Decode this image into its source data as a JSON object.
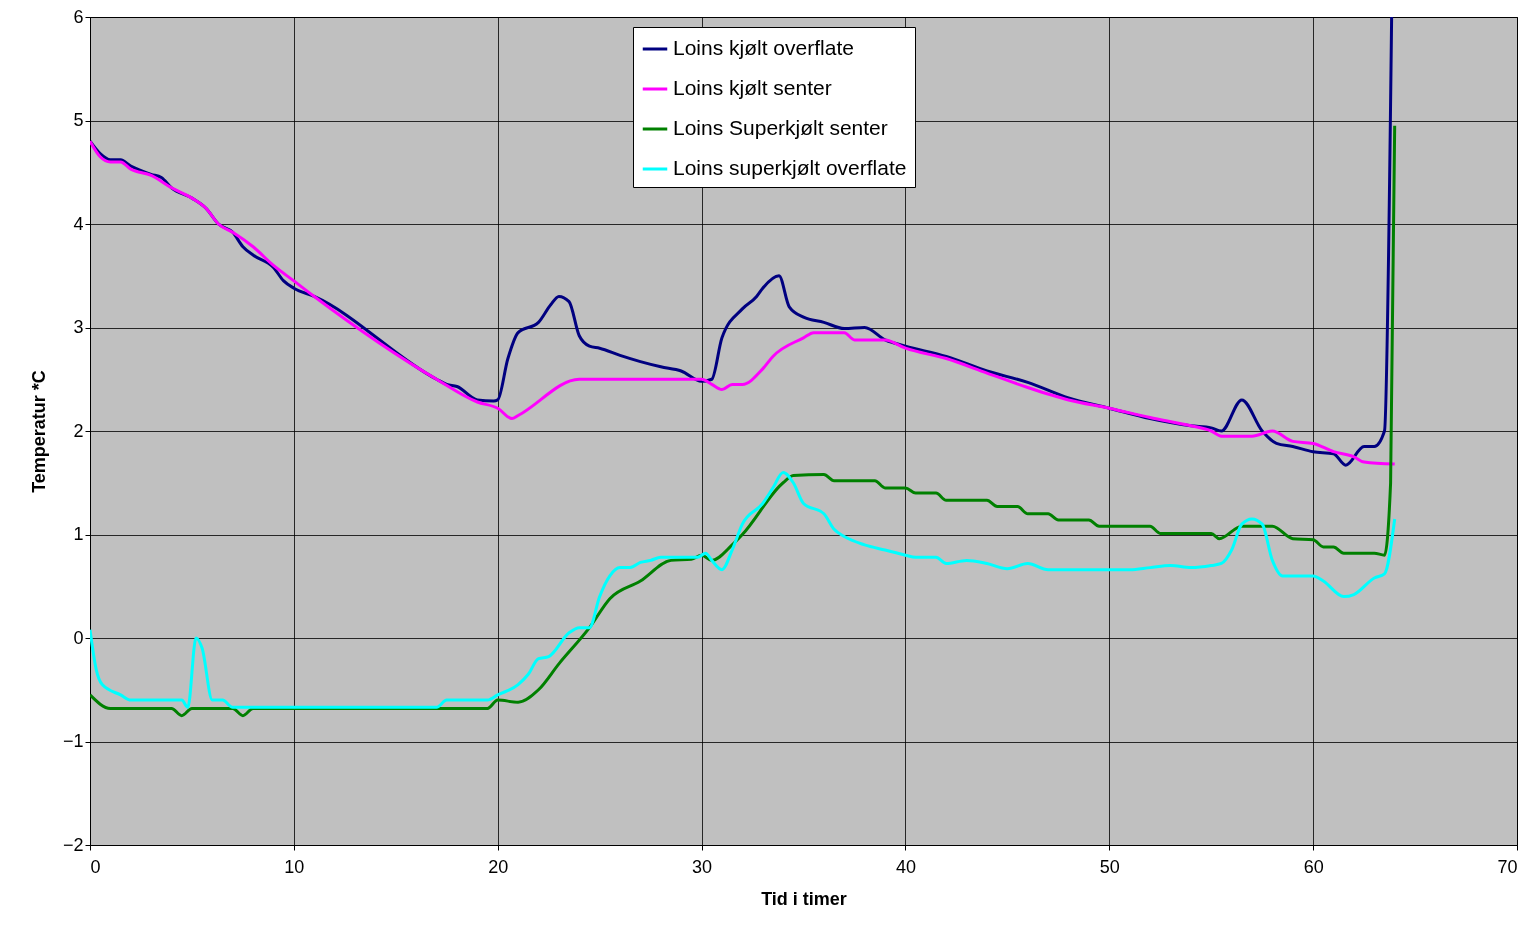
{
  "chart_data": {
    "type": "line",
    "xlabel": "Tid i timer",
    "ylabel": "Temperatur *C",
    "xlim": [
      0,
      70
    ],
    "xticks": [
      0,
      10,
      20,
      30,
      40,
      50,
      60,
      70
    ],
    "ylim": [
      -2,
      6
    ],
    "yticks": [
      -2,
      -1,
      0,
      1,
      2,
      3,
      4,
      5,
      6
    ],
    "grid": true,
    "legend": "top",
    "marker": "none",
    "line_style": "solid",
    "series": [
      {
        "name": "Loins kjølt overflate",
        "color": "#000080",
        "x": [
          0,
          0.5,
          1,
          1.5,
          2,
          3,
          3.5,
          4,
          5,
          5.7,
          6.3,
          7,
          7.5,
          8,
          9,
          9.5,
          10,
          11,
          17,
          17.5,
          18,
          19,
          19.8,
          20,
          20.5,
          21,
          22,
          22.6,
          23,
          23.5,
          24,
          24.5,
          25,
          26,
          27,
          28,
          29,
          30,
          30.5,
          31,
          32,
          32.7,
          33,
          33.8,
          34.3,
          35,
          36,
          37,
          38,
          39,
          40,
          42,
          44,
          46,
          48,
          50,
          52,
          54,
          55,
          55.5,
          56.5,
          57.5,
          58.2,
          59,
          60,
          61,
          61.6,
          62.5,
          63,
          63.5,
          63.85
        ],
        "values": [
          4.8,
          4.68,
          4.62,
          4.62,
          4.56,
          4.48,
          4.45,
          4.35,
          4.25,
          4.15,
          4.0,
          3.92,
          3.78,
          3.7,
          3.58,
          3.45,
          3.38,
          3.3,
          2.5,
          2.45,
          2.43,
          2.3,
          2.29,
          2.3,
          2.7,
          2.95,
          3.05,
          3.22,
          3.3,
          3.25,
          2.92,
          2.82,
          2.8,
          2.73,
          2.67,
          2.62,
          2.58,
          2.48,
          2.5,
          2.9,
          3.18,
          3.3,
          3.38,
          3.5,
          3.2,
          3.1,
          3.05,
          2.99,
          3.0,
          2.88,
          2.82,
          2.72,
          2.58,
          2.47,
          2.32,
          2.22,
          2.12,
          2.05,
          2.03,
          2.0,
          2.3,
          2.0,
          1.88,
          1.85,
          1.8,
          1.78,
          1.67,
          1.85,
          1.85,
          2.0,
          6
        ]
      },
      {
        "name": "Loins kjølt senter",
        "color": "#ff00ff",
        "x": [
          0,
          0.5,
          1,
          1.5,
          2,
          3,
          4,
          5,
          5.7,
          6.3,
          7,
          8,
          9,
          10,
          11,
          17,
          19,
          20,
          20.7,
          21,
          24,
          30,
          30.5,
          31,
          31.5,
          32,
          33,
          33.5,
          35,
          35.5,
          37,
          37.5,
          39,
          40,
          42,
          44,
          46,
          48,
          50,
          52,
          54,
          55,
          55.5,
          57,
          58,
          59,
          60,
          61,
          62,
          62.5,
          64
        ],
        "values": [
          4.8,
          4.65,
          4.6,
          4.6,
          4.53,
          4.47,
          4.35,
          4.25,
          4.15,
          4.0,
          3.92,
          3.78,
          3.6,
          3.45,
          3.3,
          2.5,
          2.28,
          2.22,
          2.12,
          2.15,
          2.5,
          2.5,
          2.45,
          2.4,
          2.45,
          2.45,
          2.6,
          2.72,
          2.9,
          2.95,
          2.95,
          2.88,
          2.88,
          2.8,
          2.7,
          2.56,
          2.42,
          2.3,
          2.22,
          2.13,
          2.05,
          2.0,
          1.95,
          1.95,
          2.0,
          1.9,
          1.88,
          1.8,
          1.75,
          1.7,
          1.68
        ]
      },
      {
        "name": "Loins Superkjølt senter",
        "color": "#008000",
        "x": [
          0,
          1,
          4,
          4.5,
          5,
          7,
          7.5,
          8,
          19.5,
          20,
          21,
          22,
          23,
          24.5,
          25.5,
          27,
          28.5,
          29.5,
          30,
          30.5,
          31.5,
          32,
          34,
          34.5,
          36,
          36.5,
          38.5,
          39,
          40,
          40.5,
          41.5,
          42,
          44,
          44.5,
          45.5,
          46,
          47,
          47.5,
          49,
          49.5,
          52,
          52.5,
          55,
          55.4,
          56.5,
          58,
          59,
          60,
          60.5,
          61,
          61.5,
          63,
          63.5,
          63.8,
          64
        ],
        "values": [
          -0.55,
          -0.68,
          -0.68,
          -0.75,
          -0.68,
          -0.68,
          -0.75,
          -0.68,
          -0.68,
          -0.6,
          -0.62,
          -0.5,
          -0.25,
          0.1,
          0.38,
          0.55,
          0.75,
          0.76,
          0.8,
          0.75,
          0.9,
          1.0,
          1.5,
          1.57,
          1.58,
          1.52,
          1.52,
          1.45,
          1.45,
          1.4,
          1.4,
          1.33,
          1.33,
          1.27,
          1.27,
          1.2,
          1.2,
          1.14,
          1.14,
          1.08,
          1.08,
          1.01,
          1.01,
          0.96,
          1.08,
          1.08,
          0.96,
          0.95,
          0.88,
          0.88,
          0.82,
          0.82,
          0.8,
          1.5,
          4.95
        ]
      },
      {
        "name": "Loins superkjølt overflate",
        "color": "#00ffff",
        "x": [
          0,
          0.3,
          0.6,
          1.5,
          2,
          4.5,
          4.8,
          5.2,
          5.5,
          6,
          6.5,
          7,
          17,
          17.5,
          19.5,
          20,
          21,
          21.5,
          22,
          22.5,
          23.5,
          24,
          24.5,
          25,
          25.5,
          26,
          26.5,
          27,
          27.5,
          28,
          29.8,
          30.2,
          30.5,
          31,
          31.5,
          32,
          33,
          33.5,
          34,
          34.5,
          35,
          36,
          36.5,
          37,
          38,
          39,
          40,
          40.5,
          41.5,
          42,
          43,
          44,
          45,
          46,
          47,
          50,
          51,
          52,
          53,
          54,
          55,
          55.5,
          56,
          56.5,
          57,
          57.5,
          58,
          58.5,
          60,
          60.5,
          61.5,
          62,
          63,
          63.5,
          64
        ],
        "values": [
          0.08,
          -0.3,
          -0.45,
          -0.55,
          -0.6,
          -0.6,
          -0.67,
          0.0,
          -0.1,
          -0.6,
          -0.6,
          -0.67,
          -0.67,
          -0.6,
          -0.6,
          -0.55,
          -0.45,
          -0.35,
          -0.2,
          -0.18,
          0.05,
          0.1,
          0.1,
          0.4,
          0.6,
          0.68,
          0.68,
          0.73,
          0.75,
          0.78,
          0.78,
          0.82,
          0.75,
          0.66,
          0.85,
          1.1,
          1.3,
          1.45,
          1.6,
          1.5,
          1.3,
          1.2,
          1.05,
          0.98,
          0.9,
          0.85,
          0.8,
          0.78,
          0.78,
          0.72,
          0.75,
          0.72,
          0.67,
          0.72,
          0.66,
          0.66,
          0.66,
          0.68,
          0.7,
          0.68,
          0.7,
          0.72,
          0.85,
          1.1,
          1.15,
          1.1,
          0.75,
          0.6,
          0.6,
          0.55,
          0.4,
          0.42,
          0.58,
          0.62,
          1.15
        ]
      }
    ]
  }
}
